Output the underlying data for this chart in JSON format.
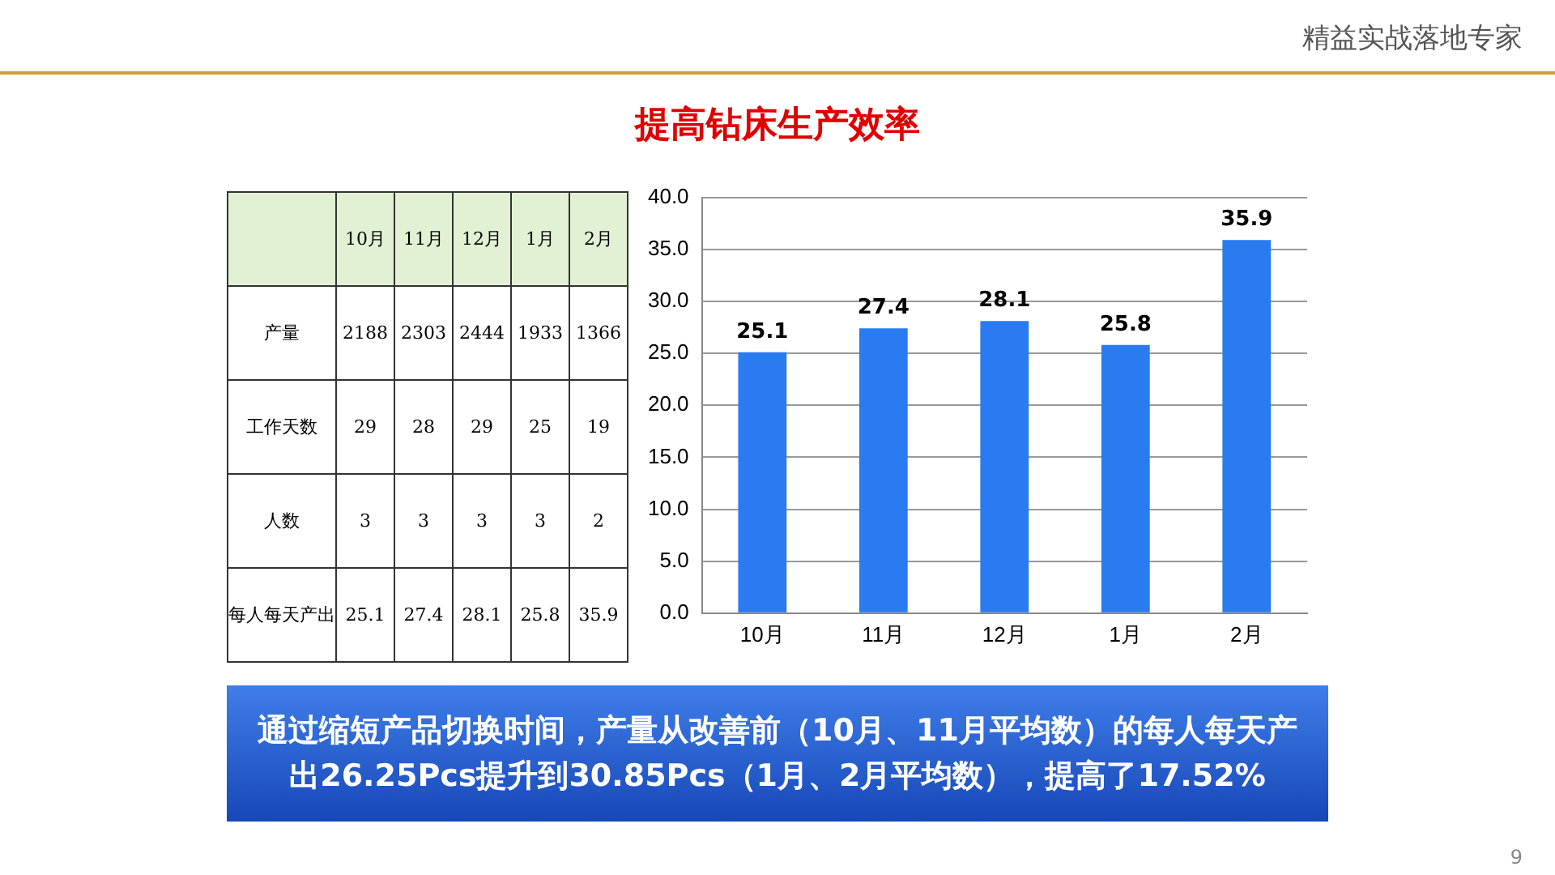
{
  "chart_data": [
    {
      "type": "other",
      "categories": [
        "10月",
        "11月",
        "12月",
        "1月",
        "2月"
      ],
      "data_labels": true,
      "series": [
        {
          "name": "产量",
          "values": [
            2188,
            2303,
            2444,
            1933,
            1366
          ]
        },
        {
          "name": "工作天数",
          "values": [
            29,
            28,
            29,
            25,
            19
          ]
        },
        {
          "name": "人数",
          "values": [
            3,
            3,
            3,
            3,
            2
          ]
        },
        {
          "name": "每人每天产出",
          "values": [
            25.1,
            27.4,
            28.1,
            25.8,
            35.9
          ]
        }
      ]
    },
    {
      "type": "bar",
      "title": "提高钻床生产效率",
      "categories": [
        "10月",
        "11月",
        "12月",
        "1月",
        "2月"
      ],
      "values": [
        25.1,
        27.4,
        28.1,
        25.8,
        35.9
      ],
      "color": "#2a7bf0",
      "ylim": [
        0,
        40
      ],
      "yticks": [
        {
          "value": 0,
          "label": "0.0"
        },
        {
          "value": 5,
          "label": "5.0"
        },
        {
          "value": 10,
          "label": "10.0"
        },
        {
          "value": 15,
          "label": "15.0"
        },
        {
          "value": 20,
          "label": "20.0"
        },
        {
          "value": 25,
          "label": "25.0"
        },
        {
          "value": 30,
          "label": "30.0"
        },
        {
          "value": 35,
          "label": "35.0"
        },
        {
          "value": 40,
          "label": "40.0"
        }
      ],
      "grid": "y",
      "data_labels": true,
      "legend": false,
      "annotations": [
        "通过缩短产品切换时间，产量从改善前（10月、11月平均数）的每人每天产出26.25Pcs提升到30.85Pcs（1月、2月平均数），提高了17.52%",
        "精益实战落地专家",
        "9"
      ]
    }
  ]
}
